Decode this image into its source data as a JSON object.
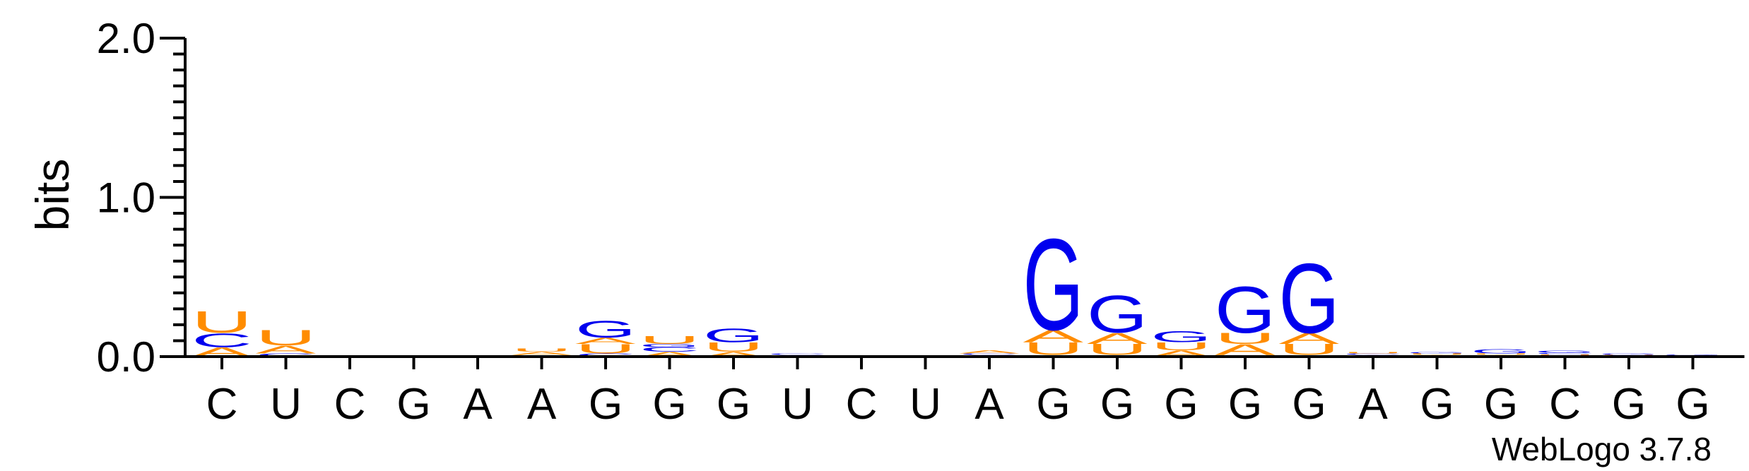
{
  "chart_data": {
    "type": "sequence-logo",
    "ylabel": "bits",
    "ylim": [
      0,
      2.0
    ],
    "yticks": [
      "0.0",
      "1.0",
      "2.0"
    ],
    "credit": "WebLogo 3.7.8",
    "colors": {
      "G": "#0000ee",
      "C": "#0000ee",
      "A": "#ff8c00",
      "U": "#ff8c00"
    },
    "positions": [
      {
        "label": "C",
        "stack": [
          {
            "letter": "A",
            "bits": 0.06
          },
          {
            "letter": "C",
            "bits": 0.09
          },
          {
            "letter": "U",
            "bits": 0.14
          }
        ]
      },
      {
        "label": "U",
        "stack": [
          {
            "letter": "C",
            "bits": 0.02
          },
          {
            "letter": "A",
            "bits": 0.05
          },
          {
            "letter": "U",
            "bits": 0.1
          }
        ]
      },
      {
        "label": "C",
        "stack": []
      },
      {
        "label": "G",
        "stack": []
      },
      {
        "label": "A",
        "stack": []
      },
      {
        "label": "A",
        "stack": [
          {
            "letter": "C",
            "bits": 0.01
          },
          {
            "letter": "A",
            "bits": 0.02
          },
          {
            "letter": "U",
            "bits": 0.02
          }
        ]
      },
      {
        "label": "G",
        "stack": [
          {
            "letter": "C",
            "bits": 0.02
          },
          {
            "letter": "U",
            "bits": 0.06
          },
          {
            "letter": "A",
            "bits": 0.04
          },
          {
            "letter": "G",
            "bits": 0.11
          }
        ]
      },
      {
        "label": "G",
        "stack": [
          {
            "letter": "A",
            "bits": 0.03
          },
          {
            "letter": "C",
            "bits": 0.03
          },
          {
            "letter": "G",
            "bits": 0.02
          },
          {
            "letter": "U",
            "bits": 0.05
          }
        ]
      },
      {
        "label": "G",
        "stack": [
          {
            "letter": "A",
            "bits": 0.03
          },
          {
            "letter": "U",
            "bits": 0.06
          },
          {
            "letter": "G",
            "bits": 0.09
          }
        ]
      },
      {
        "label": "U",
        "stack": [
          {
            "letter": "U",
            "bits": 0.01
          },
          {
            "letter": "C",
            "bits": 0.01
          }
        ]
      },
      {
        "label": "C",
        "stack": []
      },
      {
        "label": "U",
        "stack": []
      },
      {
        "label": "A",
        "stack": [
          {
            "letter": "U",
            "bits": 0.01
          },
          {
            "letter": "C",
            "bits": 0.01
          },
          {
            "letter": "A",
            "bits": 0.02
          }
        ]
      },
      {
        "label": "G",
        "stack": [
          {
            "letter": "C",
            "bits": 0.01
          },
          {
            "letter": "U",
            "bits": 0.08
          },
          {
            "letter": "A",
            "bits": 0.08
          },
          {
            "letter": "G",
            "bits": 0.59
          }
        ]
      },
      {
        "label": "G",
        "stack": [
          {
            "letter": "C",
            "bits": 0.01
          },
          {
            "letter": "U",
            "bits": 0.07
          },
          {
            "letter": "A",
            "bits": 0.07
          },
          {
            "letter": "G",
            "bits": 0.24
          }
        ]
      },
      {
        "label": "G",
        "stack": [
          {
            "letter": "A",
            "bits": 0.04
          },
          {
            "letter": "U",
            "bits": 0.05
          },
          {
            "letter": "G",
            "bits": 0.07
          }
        ]
      },
      {
        "label": "G",
        "stack": [
          {
            "letter": "C",
            "bits": 0.01
          },
          {
            "letter": "A",
            "bits": 0.07
          },
          {
            "letter": "U",
            "bits": 0.07
          },
          {
            "letter": "G",
            "bits": 0.3
          }
        ]
      },
      {
        "label": "G",
        "stack": [
          {
            "letter": "C",
            "bits": 0.01
          },
          {
            "letter": "U",
            "bits": 0.07
          },
          {
            "letter": "A",
            "bits": 0.07
          },
          {
            "letter": "G",
            "bits": 0.45
          }
        ]
      },
      {
        "label": "A",
        "stack": [
          {
            "letter": "A",
            "bits": 0.01
          },
          {
            "letter": "C",
            "bits": 0.01
          },
          {
            "letter": "U",
            "bits": 0.01
          }
        ]
      },
      {
        "label": "G",
        "stack": [
          {
            "letter": "A",
            "bits": 0.01
          },
          {
            "letter": "U",
            "bits": 0.01
          },
          {
            "letter": "G",
            "bits": 0.01
          }
        ]
      },
      {
        "label": "G",
        "stack": [
          {
            "letter": "A",
            "bits": 0.01
          },
          {
            "letter": "U",
            "bits": 0.01
          },
          {
            "letter": "G",
            "bits": 0.025
          }
        ]
      },
      {
        "label": "C",
        "stack": [
          {
            "letter": "U",
            "bits": 0.015
          },
          {
            "letter": "C",
            "bits": 0.01
          },
          {
            "letter": "G",
            "bits": 0.015
          }
        ]
      },
      {
        "label": "G",
        "stack": [
          {
            "letter": "A",
            "bits": 0.005
          },
          {
            "letter": "U",
            "bits": 0.005
          },
          {
            "letter": "G",
            "bits": 0.01
          }
        ]
      },
      {
        "label": "G",
        "stack": [
          {
            "letter": "U",
            "bits": 0.006
          },
          {
            "letter": "G",
            "bits": 0.006
          }
        ]
      }
    ]
  }
}
